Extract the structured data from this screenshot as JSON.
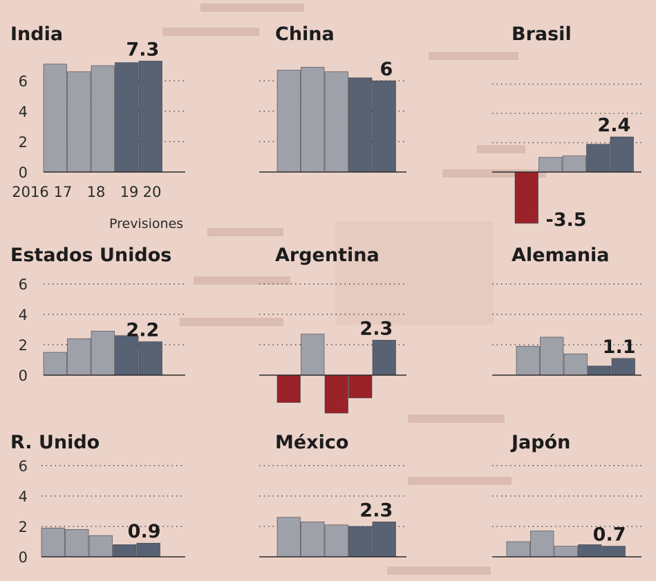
{
  "chart_data": [
    {
      "type": "bar",
      "title": "India",
      "categories": [
        "2016",
        "17",
        "18",
        "19",
        "20"
      ],
      "values": [
        7.1,
        6.6,
        7.0,
        7.2,
        7.3
      ],
      "value_label": "7.3",
      "forecast_label": "Previsiones",
      "yticks": [
        "0",
        "2",
        "4",
        "6"
      ],
      "ylim": [
        0,
        7.5
      ]
    },
    {
      "type": "bar",
      "title": "China",
      "categories": [
        "2016",
        "17",
        "18",
        "19",
        "20"
      ],
      "values": [
        6.7,
        6.9,
        6.6,
        6.2,
        6.0
      ],
      "value_label": "6",
      "ylim": [
        0,
        7.5
      ]
    },
    {
      "type": "bar",
      "title": "Brasil",
      "categories": [
        "2016",
        "17",
        "18",
        "19",
        "20"
      ],
      "values": [
        -3.5,
        1.0,
        1.1,
        1.9,
        2.4
      ],
      "value_label": "2.4",
      "neg_label": "-3.5",
      "ylim": [
        -3.8,
        3.5
      ]
    },
    {
      "type": "bar",
      "title": "Estados Unidos",
      "categories": [
        "2016",
        "17",
        "18",
        "19",
        "20"
      ],
      "values": [
        1.5,
        2.4,
        2.9,
        2.6,
        2.2
      ],
      "value_label": "2.2",
      "yticks": [
        "0",
        "2",
        "4",
        "6"
      ],
      "ylim": [
        0,
        6.5
      ]
    },
    {
      "type": "bar",
      "title": "Argentina",
      "categories": [
        "2016",
        "17",
        "18",
        "19",
        "20"
      ],
      "values": [
        -1.8,
        2.7,
        -2.5,
        -1.5,
        2.3
      ],
      "value_label": "2.3",
      "ylim": [
        -2.7,
        6.5
      ]
    },
    {
      "type": "bar",
      "title": "Alemania",
      "categories": [
        "2016",
        "17",
        "18",
        "19",
        "20"
      ],
      "values": [
        1.9,
        2.5,
        1.4,
        0.6,
        1.1
      ],
      "value_label": "1.1",
      "ylim": [
        0,
        6.5
      ]
    },
    {
      "type": "bar",
      "title": "R. Unido",
      "categories": [
        "2016",
        "17",
        "18",
        "19",
        "20"
      ],
      "values": [
        1.9,
        1.8,
        1.4,
        0.8,
        0.9
      ],
      "value_label": "0.9",
      "yticks": [
        "0",
        "2",
        "4",
        "6"
      ],
      "ylim": [
        0,
        6.5
      ]
    },
    {
      "type": "bar",
      "title": "México",
      "categories": [
        "2016",
        "17",
        "18",
        "19",
        "20"
      ],
      "values": [
        2.6,
        2.3,
        2.1,
        2.0,
        2.3
      ],
      "value_label": "2.3",
      "ylim": [
        0,
        6.5
      ]
    },
    {
      "type": "bar",
      "title": "Japón",
      "categories": [
        "2016",
        "17",
        "18",
        "19",
        "20"
      ],
      "values": [
        1.0,
        1.7,
        0.7,
        0.8,
        0.7
      ],
      "value_label": "0.7",
      "ylim": [
        0,
        6.5
      ]
    }
  ],
  "colors": {
    "background": "#ecd3c9",
    "historic": "#a6a8b1",
    "forecast": "#5b6679",
    "negative": "#a2232a",
    "text": "#1c1c1c"
  }
}
